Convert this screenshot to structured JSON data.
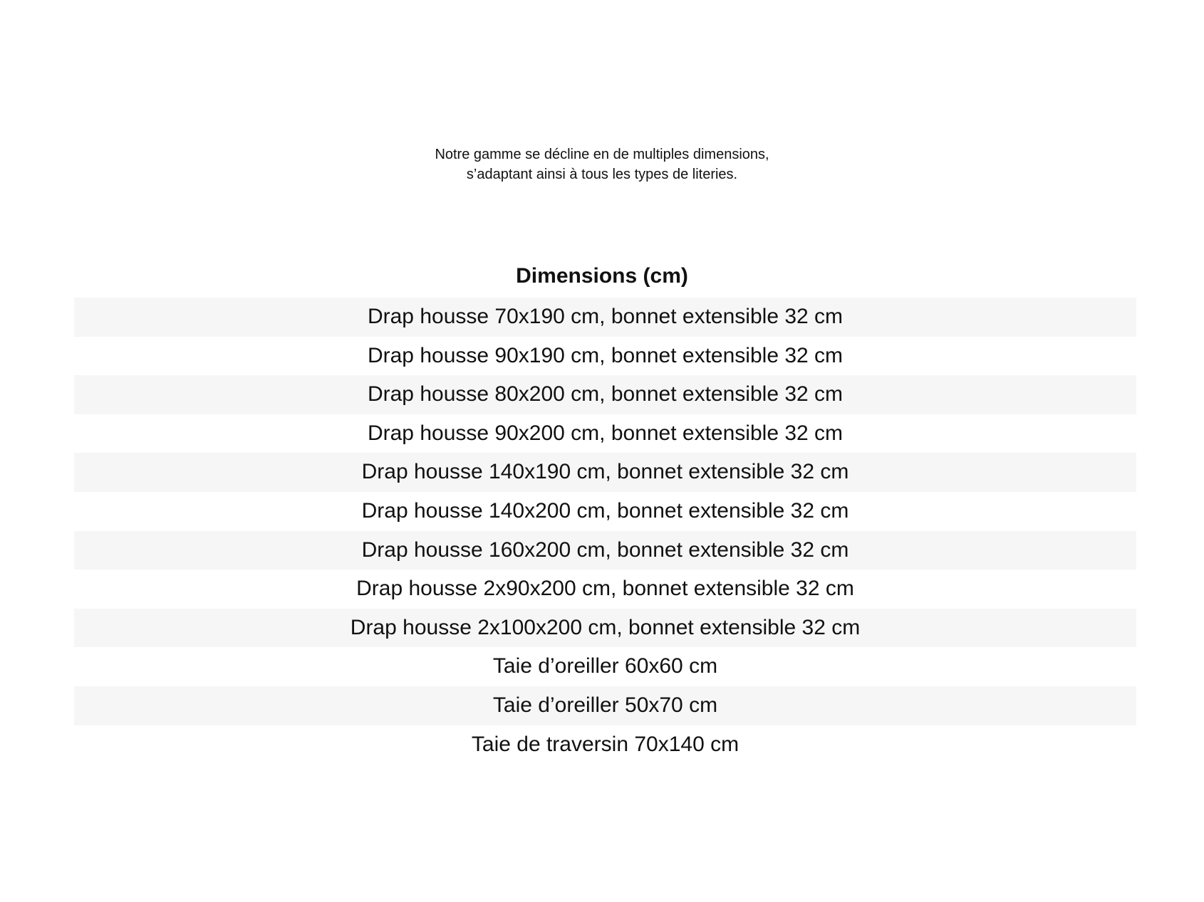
{
  "intro": {
    "line1": "Notre gamme se décline en de multiples dimensions,",
    "line2": "s’adaptant ainsi à tous les types de literies."
  },
  "table": {
    "header": "Dimensions (cm)",
    "rows": [
      "Drap housse 70x190 cm, bonnet extensible 32 cm",
      "Drap housse 90x190 cm, bonnet extensible 32 cm",
      "Drap housse 80x200 cm, bonnet extensible 32 cm",
      "Drap housse 90x200 cm, bonnet extensible 32 cm",
      "Drap housse 140x190 cm, bonnet extensible 32 cm",
      "Drap housse 140x200 cm, bonnet extensible 32 cm",
      "Drap housse 160x200 cm, bonnet extensible 32 cm",
      "Drap housse 2x90x200 cm, bonnet extensible 32 cm",
      "Drap housse 2x100x200 cm, bonnet extensible 32 cm",
      "Taie d’oreiller 60x60 cm",
      "Taie d’oreiller 50x70 cm",
      "Taie de traversin 70x140 cm"
    ]
  },
  "colors": {
    "stripe": "#f6f6f6",
    "text": "#111111"
  }
}
